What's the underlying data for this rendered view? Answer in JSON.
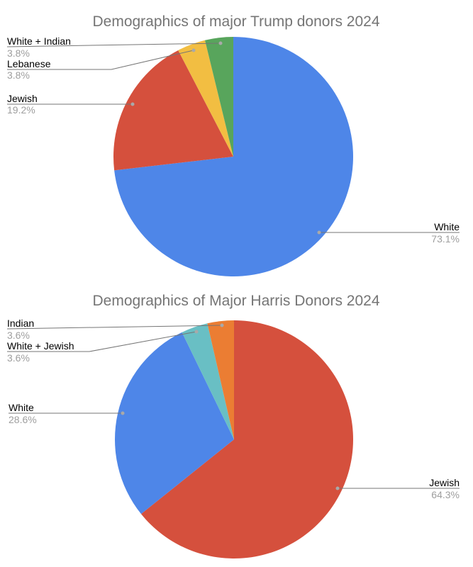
{
  "page": {
    "background_color": "#ffffff",
    "kind": "two stacked pie charts"
  },
  "style": {
    "title_color": "#757575",
    "label_color": "#000000",
    "pct_color": "#9e9e9e",
    "leader_line_color": "#757575",
    "anchor_dot_color": "#a9a9a9"
  },
  "chart_data": [
    {
      "type": "pie",
      "title": "Demographics of major Trump donors 2024",
      "direction": "clockwise",
      "start_angle": "12 o'clock",
      "labels_position": "outside with leader lines",
      "slices": [
        {
          "label": "White",
          "value": 73.1,
          "pct_label": "73.1%",
          "color": "#4e86e8"
        },
        {
          "label": "Jewish",
          "value": 19.2,
          "pct_label": "19.2%",
          "color": "#d5503d"
        },
        {
          "label": "Lebanese",
          "value": 3.8,
          "pct_label": "3.8%",
          "color": "#f2be42"
        },
        {
          "label": "White + Indian",
          "value": 3.8,
          "pct_label": "3.8%",
          "color": "#58a55c"
        }
      ]
    },
    {
      "type": "pie",
      "title": "Demographics of Major Harris Donors 2024",
      "direction": "clockwise",
      "start_angle": "12 o'clock",
      "labels_position": "outside with leader lines",
      "slices": [
        {
          "label": "Jewish",
          "value": 64.3,
          "pct_label": "64.3%",
          "color": "#d5503d"
        },
        {
          "label": "White",
          "value": 28.6,
          "pct_label": "28.6%",
          "color": "#4e86e8"
        },
        {
          "label": "White + Jewish",
          "value": 3.6,
          "pct_label": "3.6%",
          "color": "#69bfc4"
        },
        {
          "label": "Indian",
          "value": 3.6,
          "pct_label": "3.6%",
          "color": "#eb7d33"
        }
      ]
    }
  ]
}
